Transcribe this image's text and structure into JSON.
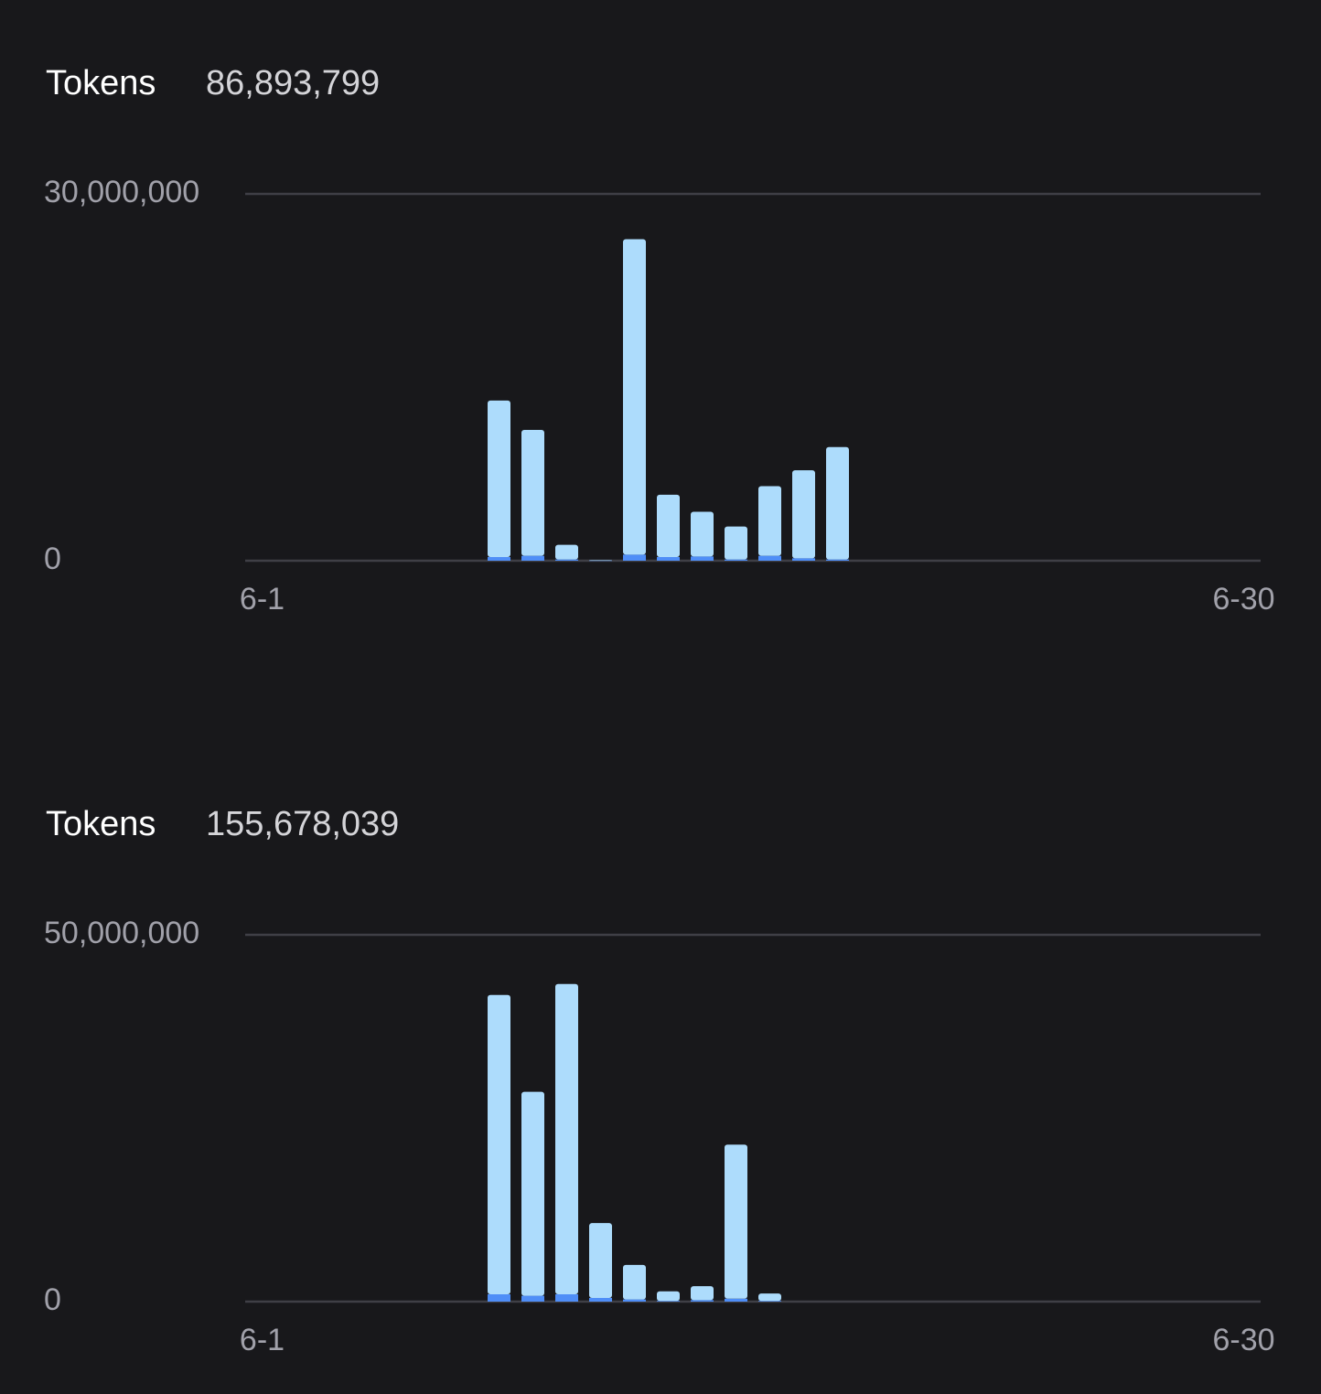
{
  "chart_data": [
    {
      "type": "bar",
      "title": "Tokens",
      "total": {
        "value": 86893799,
        "label": "86,893,799"
      },
      "categories": [
        "6-1",
        null,
        null,
        null,
        null,
        null,
        null,
        null,
        null,
        null,
        null,
        null,
        null,
        null,
        null,
        null,
        null,
        null,
        null,
        null,
        null,
        null,
        null,
        null,
        null,
        null,
        null,
        null,
        null,
        "6-30"
      ],
      "stacked": true,
      "series": [
        {
          "color": "#4f8ef7",
          "values": [
            null,
            null,
            null,
            null,
            null,
            null,
            null,
            300000,
            400000,
            100000,
            20000,
            500000,
            300000,
            350000,
            100000,
            400000,
            200000,
            100000,
            null,
            null,
            null,
            null,
            null,
            null,
            null,
            null,
            null,
            null,
            null,
            null
          ]
        },
        {
          "color": "#addcfc",
          "values": [
            null,
            null,
            null,
            null,
            null,
            null,
            null,
            12800000,
            10300000,
            1200000,
            30000,
            25800000,
            5100000,
            3650000,
            2700000,
            5700000,
            7200000,
            9200000,
            null,
            null,
            null,
            null,
            null,
            null,
            null,
            null,
            null,
            null,
            null,
            null
          ]
        }
      ],
      "ylim": [
        0,
        30000000
      ],
      "yticks": [
        0,
        {
          "value": 30000000,
          "label": "30,000,000"
        }
      ],
      "grid": true
    },
    {
      "type": "bar",
      "title": "Tokens",
      "total": {
        "value": 155678039,
        "label": "155,678,039"
      },
      "categories": [
        "6-1",
        null,
        null,
        null,
        null,
        null,
        null,
        null,
        null,
        null,
        null,
        null,
        null,
        null,
        null,
        null,
        null,
        null,
        null,
        null,
        null,
        null,
        null,
        null,
        null,
        null,
        null,
        null,
        null,
        "6-30"
      ],
      "stacked": true,
      "series": [
        {
          "color": "#4f8ef7",
          "values": [
            null,
            null,
            null,
            null,
            null,
            null,
            null,
            1000000,
            800000,
            1000000,
            500000,
            300000,
            100000,
            200000,
            400000,
            100000,
            null,
            null,
            null,
            null,
            null,
            null,
            null,
            null,
            null,
            null,
            null,
            null,
            null,
            null
          ]
        },
        {
          "color": "#addcfc",
          "values": [
            null,
            null,
            null,
            null,
            null,
            null,
            null,
            40800000,
            27800000,
            42300000,
            10200000,
            4700000,
            1300000,
            1900000,
            21000000,
            1000000,
            null,
            null,
            null,
            null,
            null,
            null,
            null,
            null,
            null,
            null,
            null,
            null,
            null,
            null
          ]
        }
      ],
      "ylim": [
        0,
        50000000
      ],
      "yticks": [
        0,
        {
          "value": 50000000,
          "label": "50,000,000"
        }
      ],
      "grid": true
    }
  ]
}
